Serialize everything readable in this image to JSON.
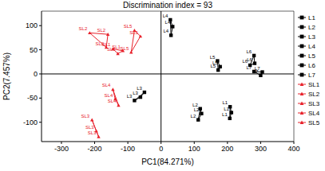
{
  "chart_data": {
    "type": "scatter",
    "title": "Discrimination index = 93",
    "x_label": "PC1(84.271%)",
    "y_label": "PC2(7.457%)",
    "xlim": [
      -360,
      400
    ],
    "ylim": [
      -140,
      130
    ],
    "xticks": [
      -300,
      -200,
      -100,
      0,
      100,
      200,
      300,
      400
    ],
    "yticks": [
      -100,
      -50,
      0,
      50,
      100
    ],
    "grid": false,
    "legend": "right",
    "series": [
      {
        "name": "L1",
        "color": "#000000",
        "marker": "square",
        "x": [
          208,
          212,
          207
        ],
        "y": [
          -68,
          -80,
          -92
        ]
      },
      {
        "name": "L2",
        "color": "#000000",
        "marker": "square",
        "x": [
          118,
          122,
          112
        ],
        "y": [
          -72,
          -82,
          -95
        ]
      },
      {
        "name": "L3",
        "color": "#000000",
        "marker": "square",
        "x": [
          -50,
          -62,
          -80
        ],
        "y": [
          -38,
          -48,
          -55
        ]
      },
      {
        "name": "L4",
        "color": "#000000",
        "marker": "square",
        "x": [
          28,
          35,
          30
        ],
        "y": [
          112,
          98,
          80
        ]
      },
      {
        "name": "L5",
        "color": "#000000",
        "marker": "square",
        "x": [
          170,
          178,
          172
        ],
        "y": [
          27,
          15,
          8
        ]
      },
      {
        "name": "L6",
        "color": "#000000",
        "marker": "square",
        "x": [
          268,
          280,
          282
        ],
        "y": [
          18,
          38,
          22
        ]
      },
      {
        "name": "L7",
        "color": "#000000",
        "marker": "square",
        "x": [
          280,
          300,
          305
        ],
        "y": [
          5,
          -3,
          4
        ]
      },
      {
        "name": "SL1",
        "color": "#e8202a",
        "marker": "triangle",
        "x": [
          -145,
          -130,
          -115
        ],
        "y": [
          52,
          42,
          48
        ]
      },
      {
        "name": "SL2",
        "color": "#e8202a",
        "marker": "triangle",
        "x": [
          -215,
          -160,
          -165
        ],
        "y": [
          85,
          82,
          55
        ]
      },
      {
        "name": "SL3",
        "color": "#e8202a",
        "marker": "triangle",
        "x": [
          -208,
          -195,
          -188
        ],
        "y": [
          -95,
          -118,
          -130
        ]
      },
      {
        "name": "SL4",
        "color": "#e8202a",
        "marker": "triangle",
        "x": [
          -145,
          -138,
          -128
        ],
        "y": [
          -32,
          -52,
          -65
        ]
      },
      {
        "name": "SL5",
        "color": "#e8202a",
        "marker": "triangle",
        "x": [
          -80,
          -62,
          -90
        ],
        "y": [
          90,
          78,
          45
        ]
      }
    ]
  }
}
